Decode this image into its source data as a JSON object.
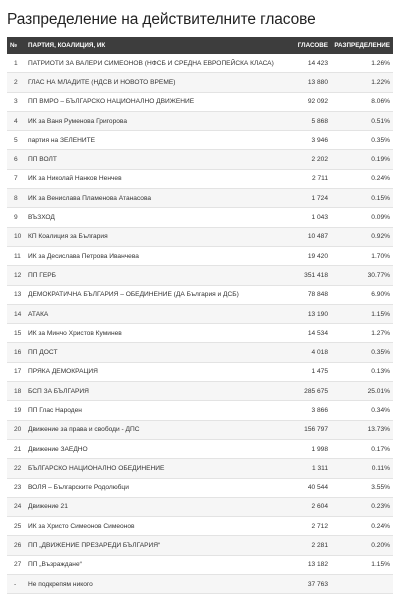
{
  "title": "Разпределение на действителните гласове",
  "columns": {
    "index": "№",
    "party": "ПАРТИЯ, КОАЛИЦИЯ, ИК",
    "votes": "ГЛАСОВЕ",
    "share": "РАЗПРЕДЕЛЕНИЕ"
  },
  "rows": [
    {
      "idx": "1",
      "party": "ПАТРИОТИ ЗА ВАЛЕРИ СИМЕОНОВ (НФСБ И СРЕДНА ЕВРОПЕЙСКА КЛАСА)",
      "votes": "14 423",
      "share": "1.26%"
    },
    {
      "idx": "2",
      "party": "ГЛАС НА МЛАДИТЕ (НДСВ И НОВОТО ВРЕМЕ)",
      "votes": "13 880",
      "share": "1.22%"
    },
    {
      "idx": "3",
      "party": "ПП ВМРО – БЪЛГАРСКО НАЦИОНАЛНО ДВИЖЕНИЕ",
      "votes": "92 092",
      "share": "8.06%"
    },
    {
      "idx": "4",
      "party": "ИК за Ваня Руменова Григорова",
      "votes": "5 868",
      "share": "0.51%"
    },
    {
      "idx": "5",
      "party": "партия на ЗЕЛЕНИТЕ",
      "votes": "3 946",
      "share": "0.35%"
    },
    {
      "idx": "6",
      "party": "ПП ВОЛТ",
      "votes": "2 202",
      "share": "0.19%"
    },
    {
      "idx": "7",
      "party": "ИК за Николай Нанков Ненчев",
      "votes": "2 711",
      "share": "0.24%"
    },
    {
      "idx": "8",
      "party": "ИК за Венислава Пламенова Атанасова",
      "votes": "1 724",
      "share": "0.15%"
    },
    {
      "idx": "9",
      "party": "ВЪЗХОД",
      "votes": "1 043",
      "share": "0.09%"
    },
    {
      "idx": "10",
      "party": "КП Коалиция за България",
      "votes": "10 487",
      "share": "0.92%"
    },
    {
      "idx": "11",
      "party": "ИК за Десислава Петрова Иванчева",
      "votes": "19 420",
      "share": "1.70%"
    },
    {
      "idx": "12",
      "party": "ПП ГЕРБ",
      "votes": "351 418",
      "share": "30.77%"
    },
    {
      "idx": "13",
      "party": "ДЕМОКРАТИЧНА БЪЛГАРИЯ – ОБЕДИНЕНИЕ (ДА България и ДСБ)",
      "votes": "78 848",
      "share": "6.90%"
    },
    {
      "idx": "14",
      "party": "АТАКА",
      "votes": "13 190",
      "share": "1.15%"
    },
    {
      "idx": "15",
      "party": "ИК за Минчо Христов Куминев",
      "votes": "14 534",
      "share": "1.27%"
    },
    {
      "idx": "16",
      "party": "ПП ДОСТ",
      "votes": "4 018",
      "share": "0.35%"
    },
    {
      "idx": "17",
      "party": "ПРЯКА ДЕМОКРАЦИЯ",
      "votes": "1 475",
      "share": "0.13%"
    },
    {
      "idx": "18",
      "party": "БСП ЗА БЪЛГАРИЯ",
      "votes": "285 675",
      "share": "25.01%"
    },
    {
      "idx": "19",
      "party": "ПП Глас Народен",
      "votes": "3 866",
      "share": "0.34%"
    },
    {
      "idx": "20",
      "party": "Движение за права и свободи - ДПС",
      "votes": "156 797",
      "share": "13.73%"
    },
    {
      "idx": "21",
      "party": "Движение ЗАЕДНО",
      "votes": "1 998",
      "share": "0.17%"
    },
    {
      "idx": "22",
      "party": "БЪЛГАРСКО НАЦИОНАЛНО ОБЕДИНЕНИЕ",
      "votes": "1 311",
      "share": "0.11%"
    },
    {
      "idx": "23",
      "party": "ВОЛЯ – Българските Родолюбци",
      "votes": "40 544",
      "share": "3.55%"
    },
    {
      "idx": "24",
      "party": "Движение 21",
      "votes": "2 604",
      "share": "0.23%"
    },
    {
      "idx": "25",
      "party": "ИК за Христо Симеонов Симеонов",
      "votes": "2 712",
      "share": "0.24%"
    },
    {
      "idx": "26",
      "party": "ПП „ДВИЖЕНИЕ ПРЕЗАРЕДИ БЪЛГАРИЯ“",
      "votes": "2 281",
      "share": "0.20%"
    },
    {
      "idx": "27",
      "party": "ПП „Възраждане“",
      "votes": "13 182",
      "share": "1.15%"
    },
    {
      "idx": "-",
      "party": "Не подкрепям никого",
      "votes": "37 763",
      "share": ""
    }
  ]
}
